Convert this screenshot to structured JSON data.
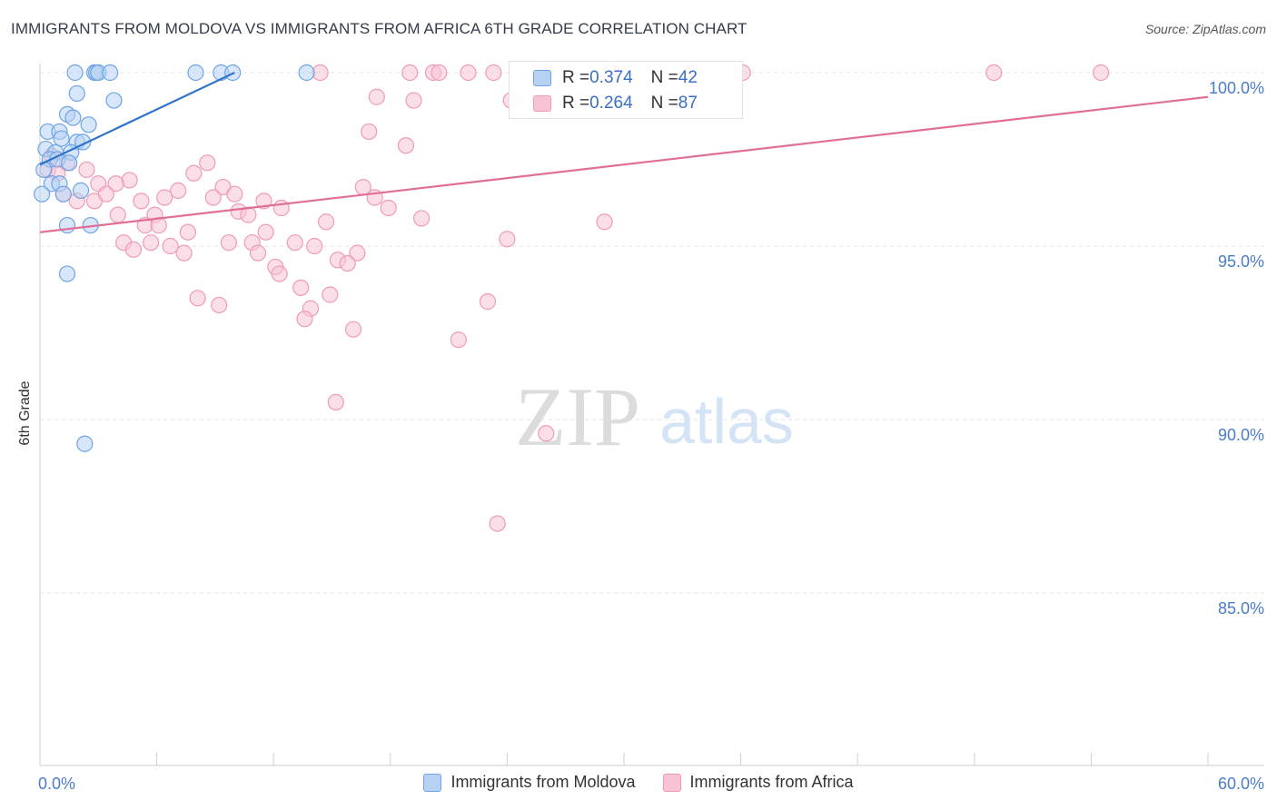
{
  "chart_data": {
    "type": "scatter",
    "title": "IMMIGRANTS FROM MOLDOVA VS IMMIGRANTS FROM AFRICA 6TH GRADE CORRELATION CHART",
    "source": "Source: ZipAtlas.com",
    "ylabel": "6th Grade",
    "xlabel": "",
    "xlim": [
      0,
      60
    ],
    "ylim": [
      80.5,
      100.8
    ],
    "x_tick_labels": [
      "0.0%",
      "60.0%"
    ],
    "y_ticks": [
      {
        "value": 100,
        "label": "100.0%"
      },
      {
        "value": 95,
        "label": "95.0%"
      },
      {
        "value": 90,
        "label": "90.0%"
      },
      {
        "value": 85,
        "label": "85.0%"
      }
    ],
    "watermark": {
      "part1": "ZIP",
      "part2": "atlas"
    },
    "series": [
      {
        "name": "Immigrants from Moldova",
        "color": "#6ea4e6",
        "fill": "#b7d1f3",
        "line_color": "#2f73cc",
        "R": "0.374",
        "N": "42",
        "trend": {
          "x0": 0.0,
          "y0": 97.35,
          "x1": 10.0,
          "y1": 100.0
        },
        "points": [
          [
            1.8,
            100.0
          ],
          [
            2.8,
            100.0
          ],
          [
            2.9,
            100.0
          ],
          [
            3.0,
            100.0
          ],
          [
            3.6,
            100.0
          ],
          [
            8.0,
            100.0
          ],
          [
            9.3,
            100.0
          ],
          [
            9.9,
            100.0
          ],
          [
            13.7,
            100.0
          ],
          [
            1.9,
            99.4
          ],
          [
            3.8,
            99.2
          ],
          [
            1.4,
            98.8
          ],
          [
            1.7,
            98.7
          ],
          [
            2.5,
            98.5
          ],
          [
            0.4,
            98.3
          ],
          [
            1.0,
            98.3
          ],
          [
            1.1,
            98.1
          ],
          [
            1.9,
            98.0
          ],
          [
            2.2,
            98.0
          ],
          [
            0.3,
            97.8
          ],
          [
            0.8,
            97.7
          ],
          [
            1.6,
            97.7
          ],
          [
            0.5,
            97.5
          ],
          [
            0.9,
            97.5
          ],
          [
            1.5,
            97.4
          ],
          [
            0.2,
            97.2
          ],
          [
            0.6,
            96.8
          ],
          [
            1.0,
            96.8
          ],
          [
            2.1,
            96.6
          ],
          [
            1.2,
            96.5
          ],
          [
            0.1,
            96.5
          ],
          [
            1.4,
            95.6
          ],
          [
            2.6,
            95.6
          ],
          [
            1.4,
            94.2
          ],
          [
            2.3,
            89.3
          ]
        ]
      },
      {
        "name": "Immigrants from Africa",
        "color": "#ef9ab6",
        "fill": "#f8c4d5",
        "line_color": "#e06e98",
        "R": "0.264",
        "N": "87",
        "trend": {
          "x0": 0.0,
          "y0": 95.4,
          "x1": 60.0,
          "y1": 99.3
        },
        "points": [
          [
            14.4,
            100.0
          ],
          [
            19.0,
            100.0
          ],
          [
            20.2,
            100.0
          ],
          [
            20.5,
            100.0
          ],
          [
            22.0,
            100.0
          ],
          [
            23.3,
            100.0
          ],
          [
            26.0,
            100.0
          ],
          [
            29.3,
            100.0
          ],
          [
            33.5,
            100.0
          ],
          [
            36.1,
            100.0
          ],
          [
            49.0,
            100.0
          ],
          [
            54.5,
            100.0
          ],
          [
            17.3,
            99.3
          ],
          [
            19.2,
            99.2
          ],
          [
            24.2,
            99.2
          ],
          [
            16.9,
            98.3
          ],
          [
            18.8,
            97.9
          ],
          [
            8.6,
            97.4
          ],
          [
            2.4,
            97.2
          ],
          [
            0.4,
            97.2
          ],
          [
            0.9,
            97.1
          ],
          [
            1.4,
            97.4
          ],
          [
            0.6,
            97.6
          ],
          [
            7.9,
            97.1
          ],
          [
            4.6,
            96.9
          ],
          [
            3.0,
            96.8
          ],
          [
            3.9,
            96.8
          ],
          [
            9.4,
            96.7
          ],
          [
            1.2,
            96.5
          ],
          [
            2.8,
            96.3
          ],
          [
            3.4,
            96.5
          ],
          [
            5.2,
            96.3
          ],
          [
            6.4,
            96.4
          ],
          [
            7.1,
            96.6
          ],
          [
            8.9,
            96.4
          ],
          [
            10.0,
            96.5
          ],
          [
            11.5,
            96.3
          ],
          [
            16.6,
            96.7
          ],
          [
            17.2,
            96.4
          ],
          [
            1.9,
            96.3
          ],
          [
            4.0,
            95.9
          ],
          [
            5.9,
            95.9
          ],
          [
            5.4,
            95.6
          ],
          [
            6.1,
            95.6
          ],
          [
            10.2,
            96.0
          ],
          [
            10.7,
            95.9
          ],
          [
            12.4,
            96.1
          ],
          [
            14.7,
            95.7
          ],
          [
            17.9,
            96.1
          ],
          [
            19.6,
            95.8
          ],
          [
            29.0,
            95.7
          ],
          [
            7.6,
            95.4
          ],
          [
            11.6,
            95.4
          ],
          [
            4.3,
            95.1
          ],
          [
            5.7,
            95.1
          ],
          [
            6.7,
            95.0
          ],
          [
            9.7,
            95.1
          ],
          [
            10.9,
            95.1
          ],
          [
            13.1,
            95.1
          ],
          [
            14.1,
            95.0
          ],
          [
            24.0,
            95.2
          ],
          [
            4.8,
            94.9
          ],
          [
            7.4,
            94.8
          ],
          [
            11.2,
            94.8
          ],
          [
            16.3,
            94.8
          ],
          [
            15.3,
            94.6
          ],
          [
            15.8,
            94.5
          ],
          [
            12.1,
            94.4
          ],
          [
            12.3,
            94.2
          ],
          [
            13.4,
            93.8
          ],
          [
            14.9,
            93.6
          ],
          [
            8.1,
            93.5
          ],
          [
            9.2,
            93.3
          ],
          [
            23.0,
            93.4
          ],
          [
            13.9,
            93.2
          ],
          [
            13.6,
            92.9
          ],
          [
            16.1,
            92.6
          ],
          [
            21.5,
            92.3
          ],
          [
            15.2,
            90.5
          ],
          [
            26.0,
            89.6
          ],
          [
            23.5,
            87.0
          ]
        ]
      }
    ]
  },
  "legend_top": {
    "rows": [
      {
        "r_label": "R = ",
        "r_value": "0.374",
        "n_label": "N = ",
        "n_value": "42"
      },
      {
        "r_label": "R = ",
        "r_value": "0.264",
        "n_label": "N = ",
        "n_value": "87"
      }
    ]
  },
  "legend_bottom": {
    "items": [
      "Immigrants from Moldova",
      "Immigrants from Africa"
    ]
  }
}
